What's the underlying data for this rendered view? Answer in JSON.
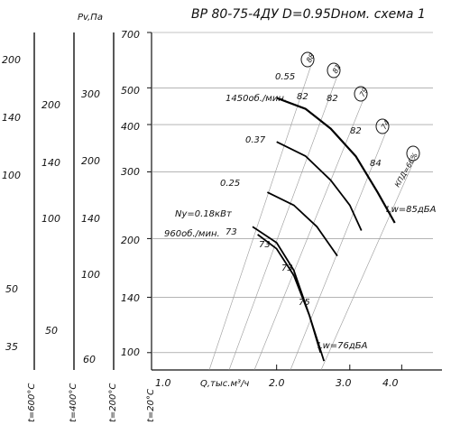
{
  "chart_data": {
    "type": "line",
    "title": "ВР 80-75-4ДУ D=0.95Dном. схема 1",
    "xlabel": "Q,тыс.м³/ч",
    "xscale": "log",
    "yscale": "log",
    "xlim": [
      1.0,
      5.0
    ],
    "ylim": [
      90,
      700
    ],
    "x_ticks": [
      "1.0",
      "2.0",
      "3.0",
      "4.0"
    ],
    "y_ticks": [
      "700",
      "500",
      "400",
      "300",
      "200",
      "140",
      "100"
    ],
    "temp_scales": [
      {
        "label": "t=600°C",
        "ticks": [
          "200",
          "140",
          "100",
          "50",
          "35"
        ]
      },
      {
        "label": "t=400°C",
        "ticks": [
          "200",
          "140",
          "100",
          "50"
        ]
      },
      {
        "label": "t=200°C",
        "ticks": [
          "300",
          "200",
          "140",
          "100",
          "60"
        ],
        "header": "Pv,Па"
      },
      {
        "label": "t=20°C",
        "ticks": []
      }
    ],
    "speed_labels": [
      "1450об./мин.",
      "960об./мин."
    ],
    "power_labels": [
      "0.55",
      "0.37",
      "0.25",
      "Ny=0.18кВт"
    ],
    "efficiency_labels": [
      "88",
      "81",
      "79",
      "74",
      "КПД=66%"
    ],
    "curve_value_labels": [
      "82",
      "82",
      "82",
      "84",
      "73",
      "73",
      "73",
      "75"
    ],
    "noise_labels": [
      "Lw=85дБА",
      "Lw=76дБА"
    ],
    "series": [
      {
        "name": "1450об./мин.",
        "x": [
          2.0,
          2.35,
          2.7,
          3.1,
          3.5,
          3.85
        ],
        "y": [
          470,
          440,
          390,
          330,
          265,
          220
        ]
      },
      {
        "name": "0.37",
        "x": [
          2.0,
          2.35,
          2.7,
          3.0,
          3.2
        ],
        "y": [
          360,
          330,
          285,
          245,
          210
        ]
      },
      {
        "name": "0.25",
        "x": [
          1.9,
          2.2,
          2.5,
          2.8
        ],
        "y": [
          265,
          245,
          215,
          180
        ]
      },
      {
        "name": "960об./мин.",
        "x": [
          1.75,
          2.0,
          2.2,
          2.4,
          2.6
        ],
        "y": [
          215,
          195,
          165,
          125,
          95
        ]
      },
      {
        "name": "960об./мин. (inner)",
        "x": [
          1.8,
          2.0,
          2.2,
          2.4,
          2.55
        ],
        "y": [
          205,
          188,
          160,
          125,
          100
        ]
      }
    ]
  }
}
